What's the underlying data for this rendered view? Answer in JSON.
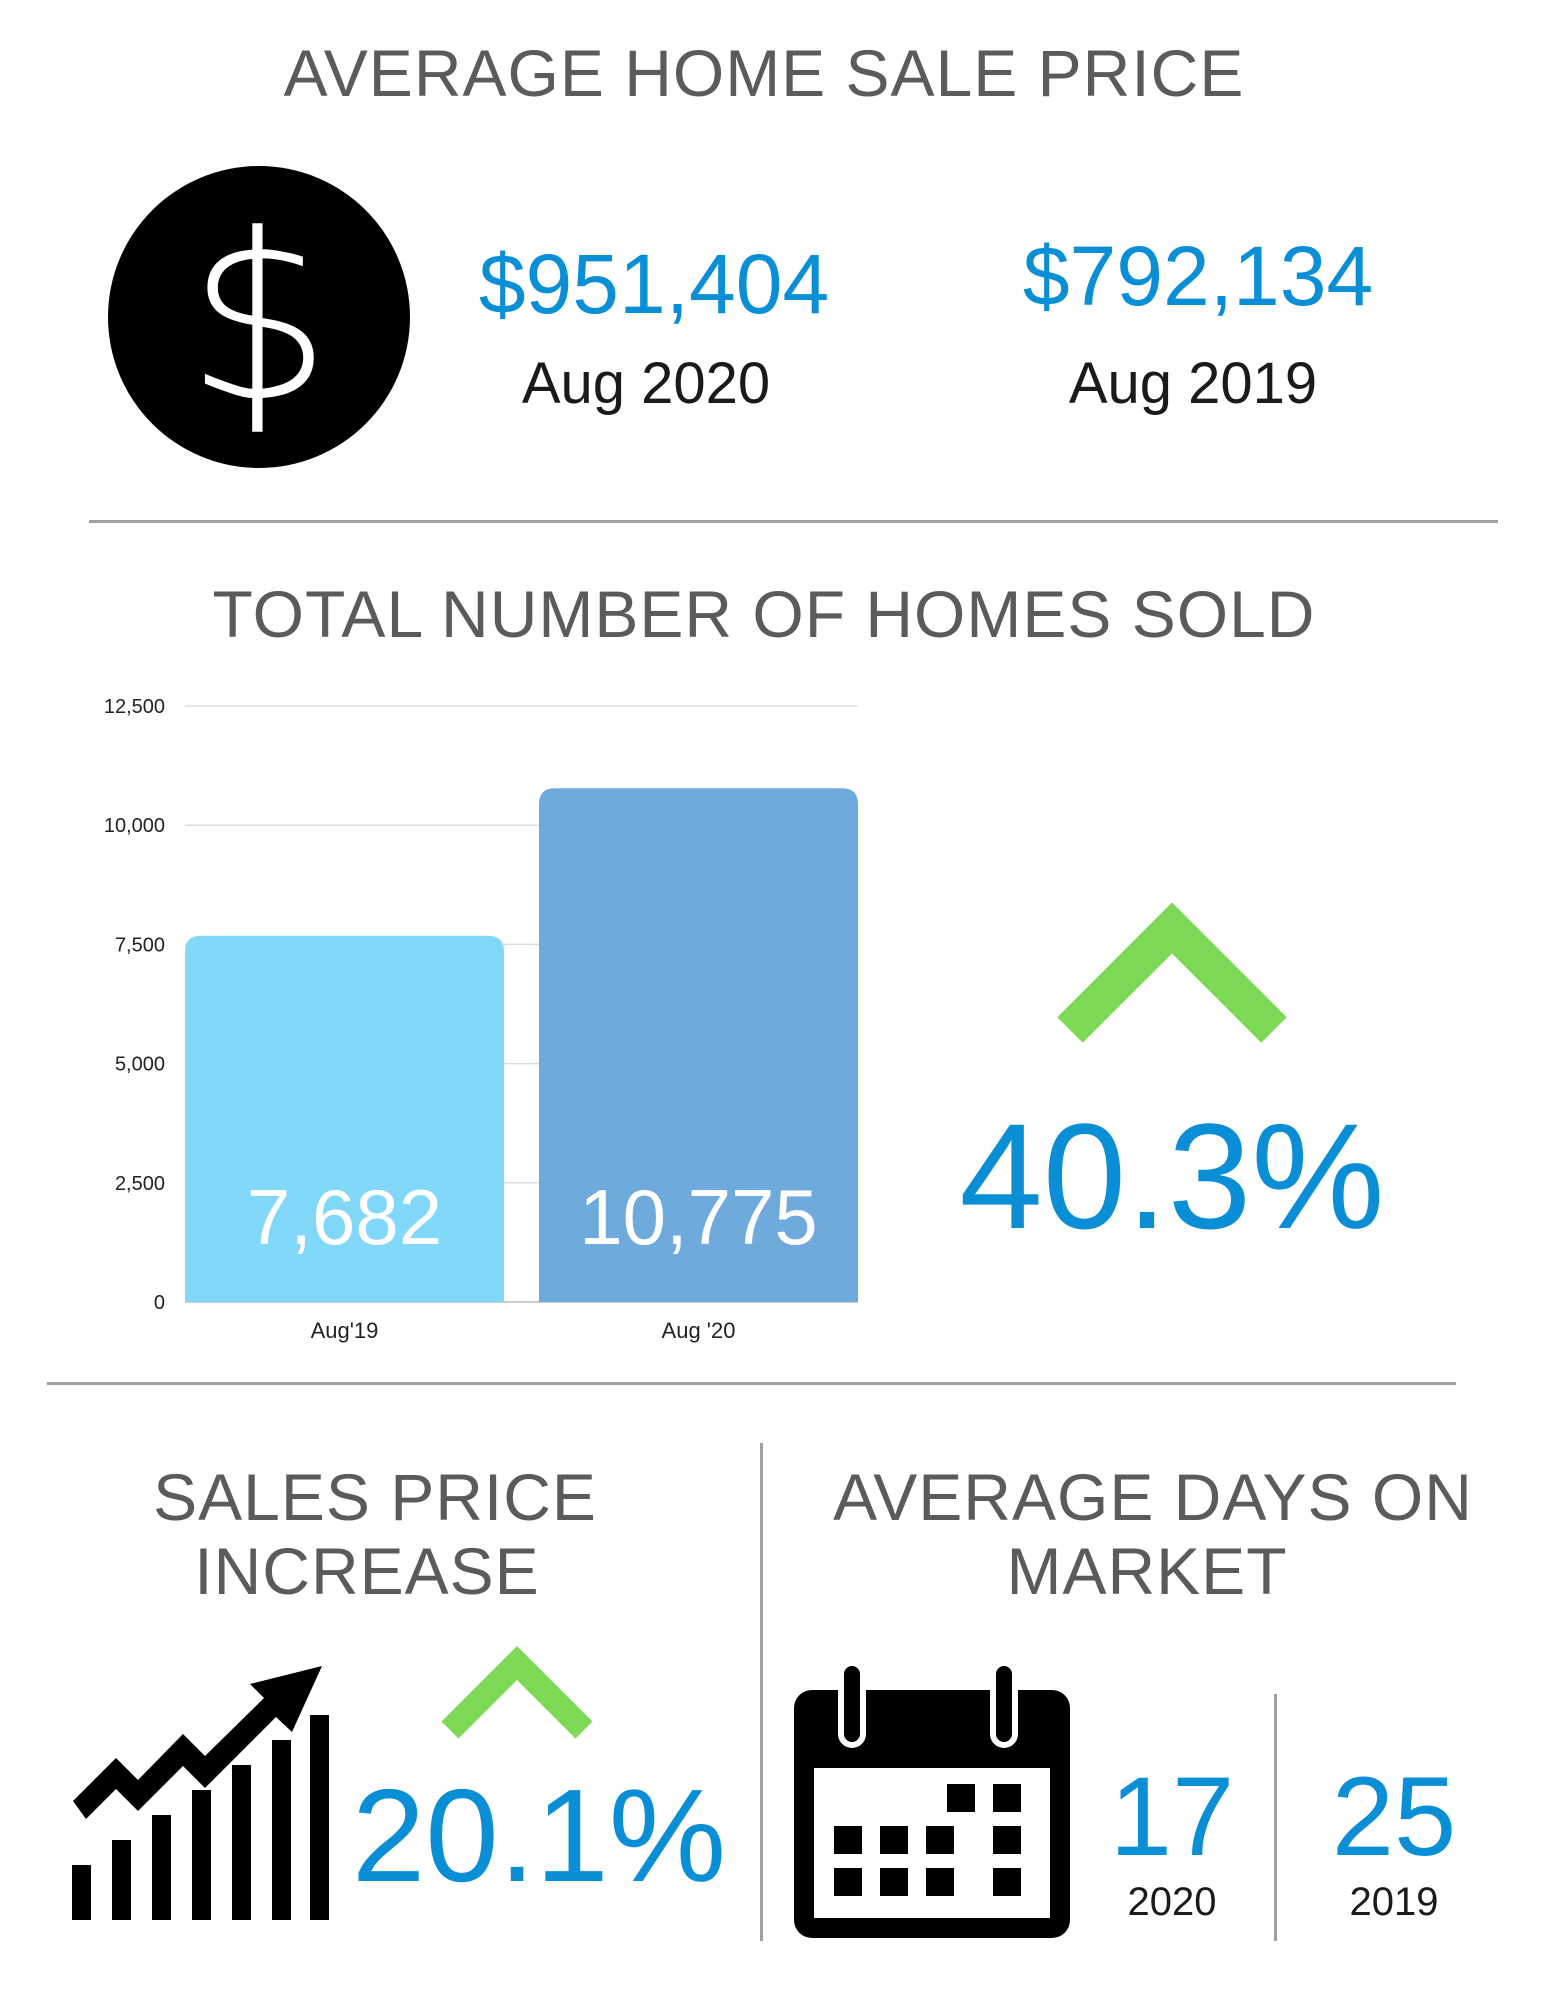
{
  "section1": {
    "title": "AVERAGE HOME SALE PRICE",
    "icon": "dollar-circle-icon",
    "current": {
      "value": "$951,404",
      "label": "Aug 2020"
    },
    "previous": {
      "value": "$792,134",
      "label": "Aug 2019"
    }
  },
  "section2": {
    "title": "TOTAL NUMBER OF HOMES SOLD",
    "change": "40.3%",
    "change_icon": "chevron-up-icon"
  },
  "chart_data": {
    "type": "bar",
    "categories": [
      "Aug'19",
      "Aug '20"
    ],
    "values": [
      7682,
      10775
    ],
    "value_labels": [
      "7,682",
      "10,775"
    ],
    "ylim": [
      0,
      12500
    ],
    "yticks": [
      "0",
      "2,500",
      "5,000",
      "7,500",
      "10,000",
      "12,500"
    ],
    "grid": true,
    "colors": [
      "#82d8f9",
      "#6eaadb"
    ]
  },
  "section3": {
    "title_lines": [
      "SALES PRICE",
      "INCREASE"
    ],
    "icon": "growth-chart-icon",
    "change": "20.1%"
  },
  "section4": {
    "title_lines": [
      "AVERAGE DAYS ON",
      "MARKET"
    ],
    "icon": "calendar-icon",
    "current": {
      "value": "17",
      "label": "2020"
    },
    "previous": {
      "value": "25",
      "label": "2019"
    }
  },
  "colors": {
    "accent_blue": "#0a8fd6",
    "up_green": "#7ed957",
    "heading_gray": "#5b5b5b"
  }
}
